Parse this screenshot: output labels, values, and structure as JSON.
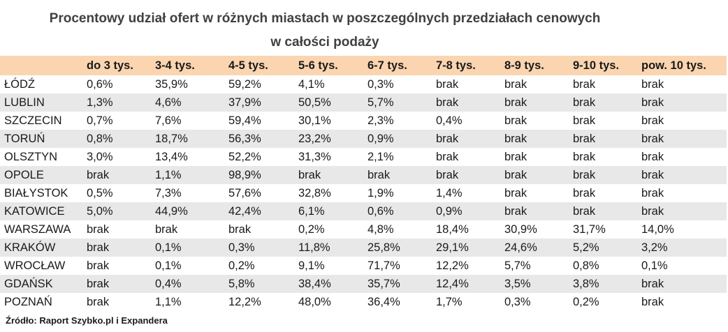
{
  "title_line1": "Procentowy udział ofert w różnych miastach w poszczególnych przedziałach cenowych",
  "title_line2": "w całości podaży",
  "chart_data": {
    "type": "table",
    "title": "Procentowy udział ofert w różnych miastach w poszczególnych przedziałach cenowych w całości podaży",
    "columns": [
      "",
      "do 3 tys.",
      "3-4 tys.",
      "4-5 tys.",
      "5-6 tys.",
      "6-7 tys.",
      "7-8 tys.",
      "8-9 tys.",
      "9-10 tys.",
      "pow. 10 tys."
    ],
    "rows": [
      [
        "ŁÓDŹ",
        "0,6%",
        "35,9%",
        "59,2%",
        "4,1%",
        "0,3%",
        "brak",
        "brak",
        "brak",
        "brak"
      ],
      [
        "LUBLIN",
        "1,3%",
        "4,6%",
        "37,9%",
        "50,5%",
        "5,7%",
        "brak",
        "brak",
        "brak",
        "brak"
      ],
      [
        "SZCZECIN",
        "0,7%",
        "7,6%",
        "59,4%",
        "30,1%",
        "2,3%",
        "0,4%",
        "brak",
        "brak",
        "brak"
      ],
      [
        "TORUŃ",
        "0,8%",
        "18,7%",
        "56,3%",
        "23,2%",
        "0,9%",
        "brak",
        "brak",
        "brak",
        "brak"
      ],
      [
        "OLSZTYN",
        "3,0%",
        "13,4%",
        "52,2%",
        "31,3%",
        "2,1%",
        "brak",
        "brak",
        "brak",
        "brak"
      ],
      [
        "OPOLE",
        "brak",
        "1,1%",
        "98,9%",
        "brak",
        "brak",
        "brak",
        "brak",
        "brak",
        "brak"
      ],
      [
        "BIAŁYSTOK",
        "0,5%",
        "7,3%",
        "57,6%",
        "32,8%",
        "1,9%",
        "1,4%",
        "brak",
        "brak",
        "brak"
      ],
      [
        "KATOWICE",
        "5,0%",
        "44,9%",
        "42,4%",
        "6,1%",
        "0,6%",
        "0,9%",
        "brak",
        "brak",
        "brak"
      ],
      [
        "WARSZAWA",
        "brak",
        "brak",
        "brak",
        "0,2%",
        "4,8%",
        "18,4%",
        "30,9%",
        "31,7%",
        "14,0%"
      ],
      [
        "KRAKÓW",
        "brak",
        "0,1%",
        "0,3%",
        "11,8%",
        "25,8%",
        "29,1%",
        "24,6%",
        "5,2%",
        "3,2%"
      ],
      [
        "WROCŁAW",
        "brak",
        "0,1%",
        "0,2%",
        "9,1%",
        "71,7%",
        "12,2%",
        "5,7%",
        "0,8%",
        "0,1%"
      ],
      [
        "GDAŃSK",
        "brak",
        "0,4%",
        "5,8%",
        "38,4%",
        "35,7%",
        "12,4%",
        "3,5%",
        "3,8%",
        "brak"
      ],
      [
        "POZNAŃ",
        "brak",
        "1,1%",
        "12,2%",
        "48,0%",
        "36,4%",
        "1,7%",
        "0,3%",
        "0,2%",
        "brak"
      ]
    ]
  },
  "source": "Źródło: Raport Szybko.pl i Expandera",
  "colors": {
    "header_bg": "#fbd5b0",
    "stripe": "#e8e8e8",
    "title": "#404040"
  }
}
